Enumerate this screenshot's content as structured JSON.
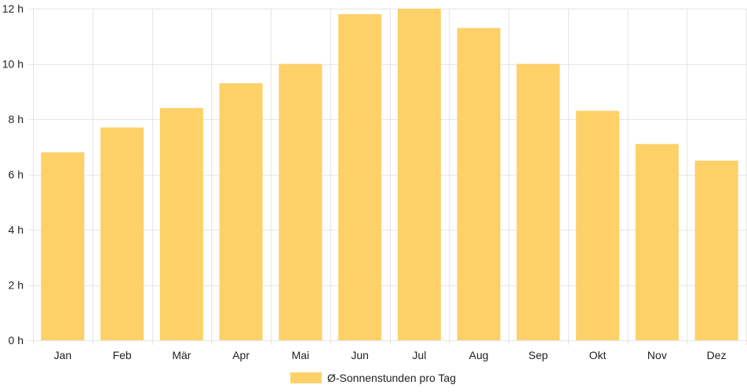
{
  "chart_data": {
    "type": "bar",
    "categories": [
      "Jan",
      "Feb",
      "Mär",
      "Apr",
      "Mai",
      "Jun",
      "Jul",
      "Aug",
      "Sep",
      "Okt",
      "Nov",
      "Dez"
    ],
    "series": [
      {
        "name": "Ø-Sonnenstunden pro Tag",
        "values": [
          6.8,
          7.7,
          8.4,
          9.3,
          10.0,
          11.8,
          12.0,
          11.3,
          10.0,
          8.3,
          7.1,
          6.5
        ],
        "color": "#fdd068"
      }
    ],
    "ylim": [
      0,
      12
    ],
    "yticks": [
      "0 h",
      "2 h",
      "4 h",
      "6 h",
      "8 h",
      "10 h",
      "12 h"
    ],
    "ytick_values": [
      0,
      2,
      4,
      6,
      8,
      10,
      12
    ],
    "grid": true,
    "legend_position": "bottom",
    "grid_color": "#e6e6e6"
  }
}
